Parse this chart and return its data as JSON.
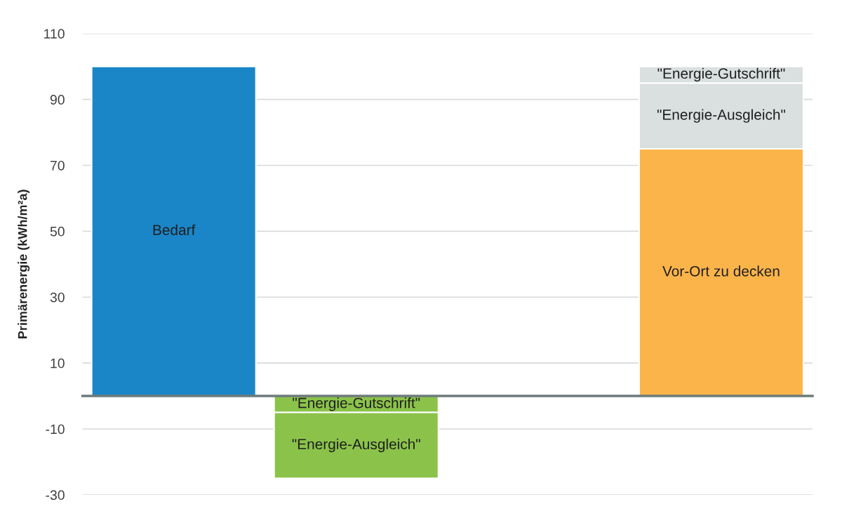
{
  "chart_data": {
    "type": "bar",
    "stacked": true,
    "ylabel": "Primärenergie (kWh/m²a)",
    "categories": [
      null,
      null,
      null,
      null
    ],
    "series": [
      {
        "name": "Bedarf",
        "color": "#1a86c8",
        "values": [
          100,
          null,
          null,
          null
        ]
      },
      {
        "name": "\"Energie-Gutschrift\"",
        "color": "#8bc34a",
        "values": [
          null,
          -5,
          null,
          null
        ]
      },
      {
        "name": "\"Energie-Ausgleich\"",
        "color": "#8bc34a",
        "values": [
          null,
          -20,
          null,
          null
        ]
      },
      {
        "name": "Vor-Ort zu decken",
        "color": "#fbb44a",
        "values": [
          null,
          null,
          null,
          75
        ]
      },
      {
        "name": "\"Energie-Ausgleich\"",
        "color": "#dadfdf",
        "values": [
          null,
          null,
          null,
          20
        ]
      },
      {
        "name": "\"Energie-Gutschrift\"",
        "color": "#dadfdf",
        "values": [
          null,
          null,
          null,
          5
        ]
      }
    ],
    "ylim": [
      -30,
      110
    ],
    "yticks": [
      -30,
      -10,
      10,
      30,
      50,
      70,
      90,
      110
    ],
    "grid": "y",
    "legend": false
  }
}
